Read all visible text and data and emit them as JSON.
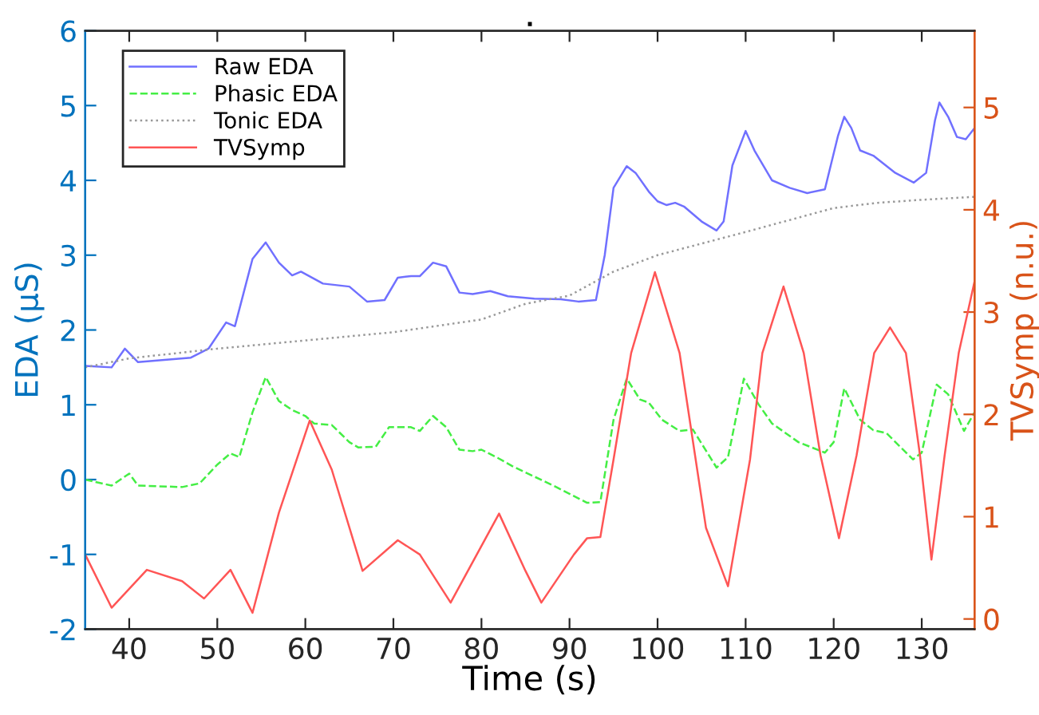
{
  "chart_data": {
    "type": "line",
    "title": ".",
    "xlabel": "Time (s)",
    "ylabel": "EDA (μS)",
    "y2label": "TVSymp (n.u.)",
    "xlim": [
      35,
      136
    ],
    "xticks": [
      40,
      50,
      60,
      70,
      80,
      90,
      100,
      110,
      120,
      130
    ],
    "ylim": [
      -2,
      6
    ],
    "yticks": [
      -2,
      -1,
      0,
      1,
      2,
      3,
      4,
      5,
      6
    ],
    "y2lim": [
      -0.1,
      5.75
    ],
    "y2ticks": [
      0,
      1,
      2,
      3,
      4,
      5
    ],
    "grid": false,
    "legend": "top left",
    "series": [
      {
        "name": "Raw EDA",
        "color": "#7070ff",
        "line_style": "solid",
        "x": [
          35,
          38,
          39.5,
          41,
          44,
          47,
          49,
          51,
          52,
          53,
          54,
          55.5,
          57,
          58.5,
          59.5,
          62,
          65,
          67,
          69,
          70.5,
          72,
          73,
          74.5,
          76,
          77.5,
          79,
          81,
          83,
          86,
          89,
          91,
          93,
          94,
          95,
          96.5,
          97.5,
          99,
          100,
          101,
          102,
          103,
          105,
          106.7,
          107.5,
          108.5,
          110,
          111,
          113,
          115,
          117,
          119,
          120.5,
          121.2,
          122,
          123,
          124.5,
          127,
          129.1,
          130.5,
          131.5,
          132,
          133,
          134,
          135,
          136
        ],
        "values": [
          1.52,
          1.5,
          1.75,
          1.57,
          1.6,
          1.63,
          1.75,
          2.1,
          2.05,
          2.5,
          2.95,
          3.17,
          2.9,
          2.73,
          2.78,
          2.62,
          2.58,
          2.38,
          2.4,
          2.7,
          2.72,
          2.72,
          2.9,
          2.85,
          2.5,
          2.48,
          2.52,
          2.45,
          2.42,
          2.41,
          2.38,
          2.4,
          3.0,
          3.9,
          4.19,
          4.1,
          3.85,
          3.72,
          3.67,
          3.7,
          3.65,
          3.45,
          3.33,
          3.45,
          4.2,
          4.66,
          4.4,
          4.0,
          3.9,
          3.83,
          3.88,
          4.6,
          4.85,
          4.7,
          4.4,
          4.33,
          4.1,
          3.97,
          4.1,
          4.8,
          5.04,
          4.85,
          4.58,
          4.55,
          4.7
        ]
      },
      {
        "name": "Phasic EDA",
        "color": "#44ee44",
        "line_style": "dashed",
        "x": [
          35,
          38,
          40,
          41,
          46,
          48,
          50,
          51.5,
          52.5,
          54,
          55.5,
          57,
          58.5,
          60,
          61,
          63,
          65,
          66,
          68,
          69.5,
          72,
          73,
          74.5,
          76,
          77.5,
          79,
          80,
          82,
          83.5,
          88.5,
          92,
          93.5,
          95,
          96.5,
          98,
          99,
          100.5,
          102.5,
          104,
          106.7,
          108,
          109.8,
          111.5,
          113,
          116,
          119,
          120,
          121.2,
          123,
          124.5,
          126,
          129,
          130,
          131.7,
          133,
          134.8,
          136
        ],
        "values": [
          0.0,
          -0.08,
          0.08,
          -0.08,
          -0.1,
          -0.05,
          0.2,
          0.35,
          0.3,
          0.9,
          1.37,
          1.05,
          0.93,
          0.85,
          0.75,
          0.73,
          0.5,
          0.43,
          0.44,
          0.7,
          0.7,
          0.65,
          0.85,
          0.7,
          0.4,
          0.38,
          0.4,
          0.28,
          0.18,
          -0.1,
          -0.31,
          -0.3,
          0.8,
          1.35,
          1.07,
          1.03,
          0.8,
          0.65,
          0.67,
          0.16,
          0.3,
          1.35,
          1.0,
          0.75,
          0.5,
          0.36,
          0.5,
          1.22,
          0.8,
          0.66,
          0.62,
          0.27,
          0.36,
          1.27,
          1.14,
          0.65,
          0.9
        ]
      },
      {
        "name": "Tonic EDA",
        "color": "#999999",
        "line_style": "dotted",
        "x": [
          35,
          40,
          50,
          60,
          70,
          80,
          85,
          90,
          95,
          100,
          110,
          120,
          125,
          130,
          136
        ],
        "values": [
          1.5,
          1.62,
          1.75,
          1.86,
          1.97,
          2.14,
          2.35,
          2.46,
          2.78,
          3.0,
          3.31,
          3.63,
          3.7,
          3.74,
          3.78
        ]
      },
      {
        "name": "TVSymp",
        "color": "#ff5555",
        "line_style": "solid",
        "axis": "y2",
        "x": [
          35,
          38,
          42,
          46,
          48.5,
          51.5,
          54,
          57,
          60.5,
          63,
          66.5,
          70.5,
          73,
          76.5,
          82,
          85,
          86.8,
          90.5,
          92,
          93.5,
          95,
          97,
          99.7,
          102.5,
          105.5,
          108,
          110.5,
          111.9,
          114.3,
          116.6,
          118.5,
          120.6,
          122.6,
          124.6,
          126.4,
          128.2,
          129.8,
          131.1,
          132.6,
          134.2,
          136
        ],
        "values": [
          0.63,
          0.11,
          0.48,
          0.37,
          0.2,
          0.48,
          0.06,
          1.04,
          1.94,
          1.46,
          0.47,
          0.77,
          0.63,
          0.16,
          1.03,
          0.47,
          0.16,
          0.63,
          0.79,
          0.8,
          1.56,
          2.6,
          3.39,
          2.6,
          0.89,
          0.32,
          1.56,
          2.6,
          3.25,
          2.6,
          1.6,
          0.79,
          1.6,
          2.6,
          2.85,
          2.6,
          1.6,
          0.58,
          1.6,
          2.6,
          3.3
        ]
      }
    ]
  }
}
